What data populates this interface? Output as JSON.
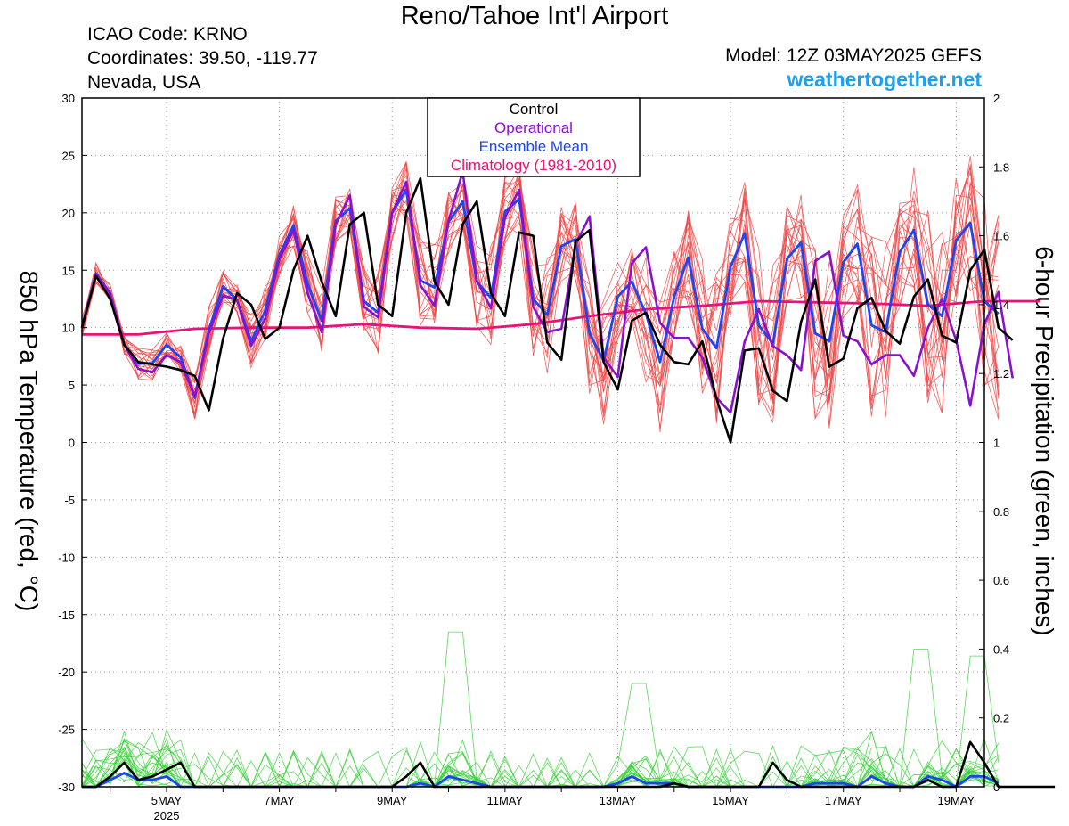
{
  "header": {
    "title": "Reno/Tahoe Int'l Airport",
    "icao": "ICAO Code: KRNO",
    "coords": "Coordinates: 39.50, -119.77",
    "region": "Nevada, USA",
    "model": "Model: 12Z 03MAY2025 GEFS",
    "website": "weathertogether.net"
  },
  "colors": {
    "members_temp": "#f04848",
    "members_precip": "#3cd23c",
    "control": "#000000",
    "operational": "#8a10d0",
    "ensemble_mean": "#1e46f0",
    "climatology": "#e8127a",
    "website": "#1aa0f0"
  },
  "chart_data": {
    "type": "line",
    "ylabel_left": "850 hPa Temperature (red, °C)",
    "ylabel_right": "6-hour Precipitation (green, inches)",
    "xlabel": "",
    "ylim_left": [
      -30,
      30
    ],
    "ylim_right": [
      0,
      2
    ],
    "x_range_days": [
      "03 May 2025 12Z",
      "19 May 2025 12Z"
    ],
    "y_ticks_left": [
      "30",
      "25",
      "20",
      "15",
      "10",
      "5",
      "0",
      "-5",
      "-10",
      "-15",
      "-20",
      "-25",
      "-30"
    ],
    "y_ticks_right": [
      "2",
      "1.8",
      "1.6",
      "1.4",
      "1.2",
      "1",
      "0.8",
      "0.6",
      "0.4",
      "0.2",
      "0"
    ],
    "x_ticks": [
      {
        "label": "5MAY",
        "sub": "2025",
        "day": 5
      },
      {
        "label": "7MAY",
        "sub": "",
        "day": 7
      },
      {
        "label": "9MAY",
        "sub": "",
        "day": 9
      },
      {
        "label": "11MAY",
        "sub": "",
        "day": 11
      },
      {
        "label": "13MAY",
        "sub": "",
        "day": 13
      },
      {
        "label": "15MAY",
        "sub": "",
        "day": 15
      },
      {
        "label": "17MAY",
        "sub": "",
        "day": 17
      },
      {
        "label": "19MAY",
        "sub": "",
        "day": 19
      }
    ],
    "grid": "dotted",
    "legend": {
      "position": "top-center",
      "entries": [
        {
          "name": "Control",
          "color": "#000000"
        },
        {
          "name": "Operational",
          "color": "#8a10d0"
        },
        {
          "name": "Ensemble Mean",
          "color": "#1e46f0"
        },
        {
          "name": "Climatology (1981-2010)",
          "color": "#e8127a"
        }
      ]
    },
    "series": [
      {
        "name": "Control",
        "axis": "left",
        "step_hours": 6,
        "values": [
          10,
          14.5,
          12.5,
          8.5,
          7,
          6.8,
          6.6,
          6.3,
          5.8,
          2.8,
          9,
          13,
          12,
          9,
          10,
          15,
          18,
          14,
          11,
          19,
          20,
          12,
          11,
          20,
          23,
          14,
          12,
          19,
          21,
          13,
          11,
          18.3,
          18,
          8.7,
          7.2,
          17.5,
          18.5,
          7,
          4.6,
          10.6,
          11.3,
          8.5,
          7,
          6.8,
          8.8,
          3.8,
          0,
          8,
          8.2,
          4.5,
          3.6,
          10.5,
          14.2,
          6.6,
          7.3,
          11.7,
          12.6,
          9.7,
          8.6,
          12.7,
          14.2,
          9.3,
          8.7,
          15,
          16.8,
          10,
          8.9
        ]
      },
      {
        "name": "Operational",
        "axis": "left",
        "step_hours": 6,
        "values": [
          10,
          14.6,
          13,
          8.5,
          6.4,
          6.1,
          7.6,
          7,
          4,
          9.5,
          12.8,
          12.4,
          8.4,
          10.8,
          16,
          18.5,
          13,
          9.6,
          19,
          21.5,
          11.8,
          10.9,
          20,
          22.7,
          13.7,
          11.9,
          19.3,
          23.6,
          14.1,
          11.7,
          19.6,
          22,
          11.8,
          9.6,
          9.9,
          17.2,
          19.7,
          7.4,
          5.7,
          15.6,
          17,
          10.4,
          9.1,
          9.1,
          7.4,
          3.9,
          2.6,
          8.8,
          11.6,
          8.4,
          7.6,
          6.3,
          15.8,
          16.6,
          9.3,
          8.8,
          6.8,
          7.6,
          7.6,
          5.8,
          10,
          12.5,
          8.9,
          3.2,
          10.3,
          13.1,
          5.6
        ]
      },
      {
        "name": "Ensemble Mean",
        "axis": "left",
        "step_hours": 6,
        "values": [
          10,
          14.7,
          13,
          8.5,
          6.9,
          6.9,
          8.5,
          7.4,
          3.9,
          9.8,
          13.6,
          12.4,
          8.8,
          11.5,
          16.3,
          18.9,
          13.8,
          10.6,
          19.3,
          20.4,
          12.3,
          11.3,
          20,
          22,
          14.1,
          13.5,
          19.2,
          21,
          14,
          12.6,
          20.1,
          21.2,
          12.5,
          11.1,
          17.1,
          17.7,
          9.5,
          7.1,
          12.7,
          14,
          11.2,
          7,
          12.7,
          16.1,
          9.9,
          8.2,
          15.3,
          18.2,
          10.2,
          8.6,
          16,
          17.4,
          9.5,
          8.8,
          15.7,
          17.3,
          10.2,
          9.6,
          16.6,
          18.5,
          12,
          11,
          17.6,
          19.1,
          12.3,
          11.2
        ]
      },
      {
        "name": "Climatology (1981-2010)",
        "axis": "left",
        "step_hours": 24,
        "values": [
          9.4,
          9.4,
          9.9,
          10,
          10,
          10.3,
          10,
          9.9,
          10.3,
          11,
          11.6,
          11.9,
          12.3,
          12.2,
          12.1,
          11.9,
          12.3,
          12.3
        ]
      },
      {
        "name": "Control",
        "axis": "right",
        "step_hours": 6,
        "values": [
          0,
          0,
          0.03,
          0.07,
          0.02,
          0.03,
          0.05,
          0.07,
          0,
          0,
          0,
          0,
          0,
          0,
          0,
          0,
          0,
          0,
          0,
          0,
          0,
          0,
          0,
          0.03,
          0.07,
          0,
          0,
          0,
          0,
          0,
          0,
          0,
          0,
          0,
          0,
          0,
          0,
          0,
          0,
          0,
          0,
          0,
          0.01,
          0,
          0,
          0,
          0,
          0,
          0,
          0.07,
          0.02,
          0,
          0,
          0,
          0,
          0,
          0,
          0,
          0,
          0,
          0.02,
          0,
          0,
          0.13,
          0.07,
          0,
          0,
          0,
          0,
          0
        ]
      },
      {
        "name": "Ensemble Mean",
        "axis": "right",
        "step_hours": 6,
        "values": [
          0,
          0,
          0.02,
          0.04,
          0.02,
          0.02,
          0.03,
          0,
          0,
          0,
          0,
          0,
          0,
          0,
          0,
          0,
          0,
          0,
          0,
          0,
          0,
          0,
          0,
          0,
          0.01,
          0,
          0.03,
          0.02,
          0.01,
          0,
          0,
          0,
          0,
          0,
          0,
          0,
          0,
          0,
          0.01,
          0.03,
          0.01,
          0.01,
          0.01,
          0,
          0,
          0,
          0,
          0,
          0,
          0,
          0,
          0,
          0.01,
          0.01,
          0.01,
          0,
          0.03,
          0.01,
          0,
          0,
          0.03,
          0.02,
          0,
          0.03,
          0.03,
          0.01
        ]
      }
    ]
  }
}
